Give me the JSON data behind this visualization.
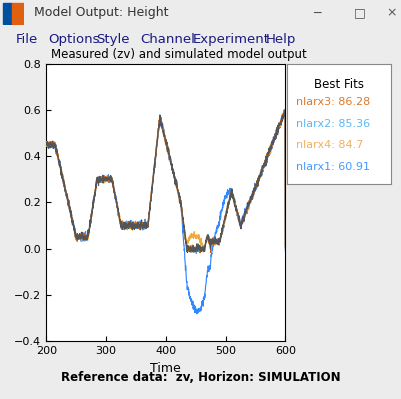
{
  "title": "Measured (zv) and simulated model output",
  "xlabel": "Time",
  "footer": "Reference data:  zv, Horizon: SIMULATION",
  "xlim": [
    200,
    600
  ],
  "ylim": [
    -0.4,
    0.8
  ],
  "yticks": [
    -0.4,
    -0.2,
    0.0,
    0.2,
    0.4,
    0.6,
    0.8
  ],
  "xticks": [
    200,
    300,
    400,
    500,
    600
  ],
  "legend_title": "Best Fits",
  "legend_entries": [
    {
      "label": "nlarx3: 86.28",
      "color": "#E07828"
    },
    {
      "label": "nlarx2: 85.36",
      "color": "#5BB8F5"
    },
    {
      "label": "nlarx4: 84.7",
      "color": "#F0B060"
    },
    {
      "label": "nlarx1: 60.91",
      "color": "#4499FF"
    }
  ],
  "measured_color": "#555555",
  "nlarx3_color": "#D06010",
  "nlarx2_color": "#5599DD",
  "nlarx4_color": "#F0A840",
  "nlarx1_color": "#3388FF",
  "bg_color": "#ECECEC",
  "plot_bg_color": "#FFFFFF",
  "titlebar_color": "#F5F5F5",
  "menubar_color": "#F5F5F5",
  "window_title": "Model Output: Height"
}
